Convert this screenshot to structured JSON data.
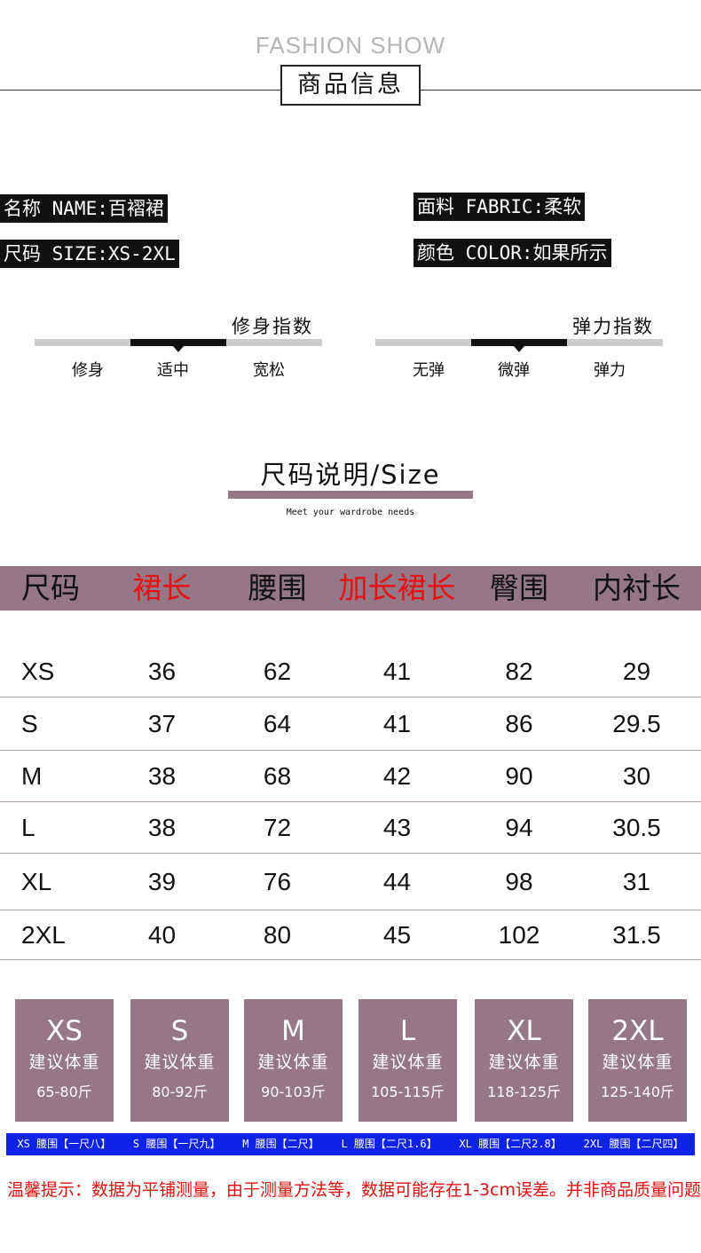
{
  "header": {
    "subtitle": "FASHION SHOW",
    "title": "商品信息"
  },
  "info": {
    "name": "名称 NAME:百褶裙",
    "size": "尺码 SIZE:XS-2XL",
    "fabric": "面料 FABRIC:柔软",
    "color": "颜色 COLOR:如果所示"
  },
  "scales": [
    {
      "title": "修身指数",
      "labels": [
        "修身",
        "适中",
        "宽松"
      ],
      "selected": 1
    },
    {
      "title": "弹力指数",
      "labels": [
        "无弹",
        "微弹",
        "弹力"
      ],
      "selected": 1
    }
  ],
  "size_section": {
    "title": "尺码说明/Size",
    "tagline": "Meet your wardrobe needs",
    "accent": "#957788"
  },
  "table": {
    "headers": [
      {
        "t": "尺码",
        "red": false
      },
      {
        "t": "裙长",
        "red": true
      },
      {
        "t": "腰围",
        "red": false
      },
      {
        "t": "加长裙长",
        "red": true
      },
      {
        "t": "臀围",
        "red": false
      },
      {
        "t": "内衬长",
        "red": false
      }
    ],
    "rows": [
      [
        "XS",
        "36",
        "62",
        "41",
        "82",
        "29"
      ],
      [
        "S",
        "37",
        "64",
        "41",
        "86",
        "29.5"
      ],
      [
        "M",
        "38",
        "68",
        "42",
        "90",
        "30"
      ],
      [
        "L",
        "38",
        "72",
        "43",
        "94",
        "30.5"
      ],
      [
        "XL",
        "39",
        "76",
        "44",
        "98",
        "31"
      ],
      [
        "2XL",
        "40",
        "80",
        "45",
        "102",
        "31.5"
      ]
    ]
  },
  "weights": [
    {
      "size": "XS",
      "label": "建议体重",
      "range": "65-80斤"
    },
    {
      "size": "S",
      "label": "建议体重",
      "range": "80-92斤"
    },
    {
      "size": "M",
      "label": "建议体重",
      "range": "90-103斤"
    },
    {
      "size": "L",
      "label": "建议体重",
      "range": "105-115斤"
    },
    {
      "size": "XL",
      "label": "建议体重",
      "range": "118-125斤"
    },
    {
      "size": "2XL",
      "label": "建议体重",
      "range": "125-140斤"
    }
  ],
  "waist_notes": [
    "XS 腰围【一尺八】",
    "S 腰围【一尺九】",
    "M 腰围【二尺】",
    "L 腰围【二尺1.6】",
    "XL 腰围【二尺2.8】",
    "2XL 腰围【二尺四】"
  ],
  "tip": "温馨提示：数据为平铺测量，由于测量方法等，数据可能存在1-3cm误差。并非商品质量问题"
}
